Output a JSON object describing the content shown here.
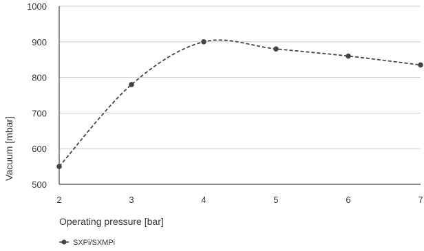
{
  "chart_data": {
    "type": "line",
    "title": "",
    "xlabel": "Operating pressure [bar]",
    "ylabel": "Vacuum [mbar]",
    "x": [
      2,
      3,
      4,
      5,
      6,
      7
    ],
    "x_ticks": [
      "2",
      "3",
      "4",
      "5",
      "6",
      "7"
    ],
    "y_ticks": [
      "500",
      "600",
      "700",
      "800",
      "900",
      "1000"
    ],
    "xlim": [
      2,
      7
    ],
    "ylim": [
      500,
      1000
    ],
    "grid": true,
    "legend_position": "bottom-left",
    "series": [
      {
        "name": "SXPi/SXMPi",
        "values": [
          550,
          780,
          900,
          880,
          860,
          835
        ],
        "color": "#444444",
        "line_style": "dashed",
        "marker": "circle"
      }
    ]
  }
}
